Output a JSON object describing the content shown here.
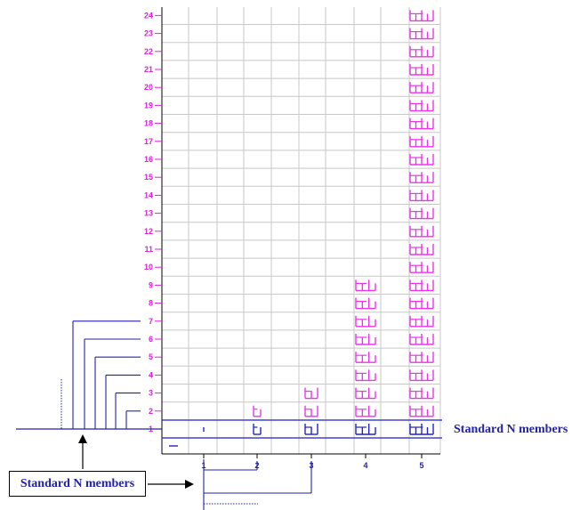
{
  "colors": {
    "grid": "#c8c8c8",
    "axis": "#000000",
    "ylabel": "#dd22dd",
    "xlabel": "#2222aa",
    "standard": "#2222cc",
    "glyph": "#ee33ee",
    "connector": "#2222aa"
  },
  "y_ticks": [
    "24",
    "23",
    "22",
    "21",
    "20",
    "19",
    "18",
    "17",
    "16",
    "15",
    "14",
    "13",
    "12",
    "11",
    "10",
    "9",
    "8",
    "7",
    "6",
    "5",
    "4",
    "3",
    "2",
    "1"
  ],
  "x_ticks": [
    "1",
    "2",
    "3",
    "4",
    "5"
  ],
  "label_right": "Standard N members",
  "label_box": "Standard N members",
  "chart_data": {
    "type": "table",
    "columns": [
      "1",
      "2",
      "3",
      "4",
      "5"
    ],
    "column_heights": [
      1,
      2,
      3,
      9,
      24
    ],
    "standard_row": 1
  }
}
